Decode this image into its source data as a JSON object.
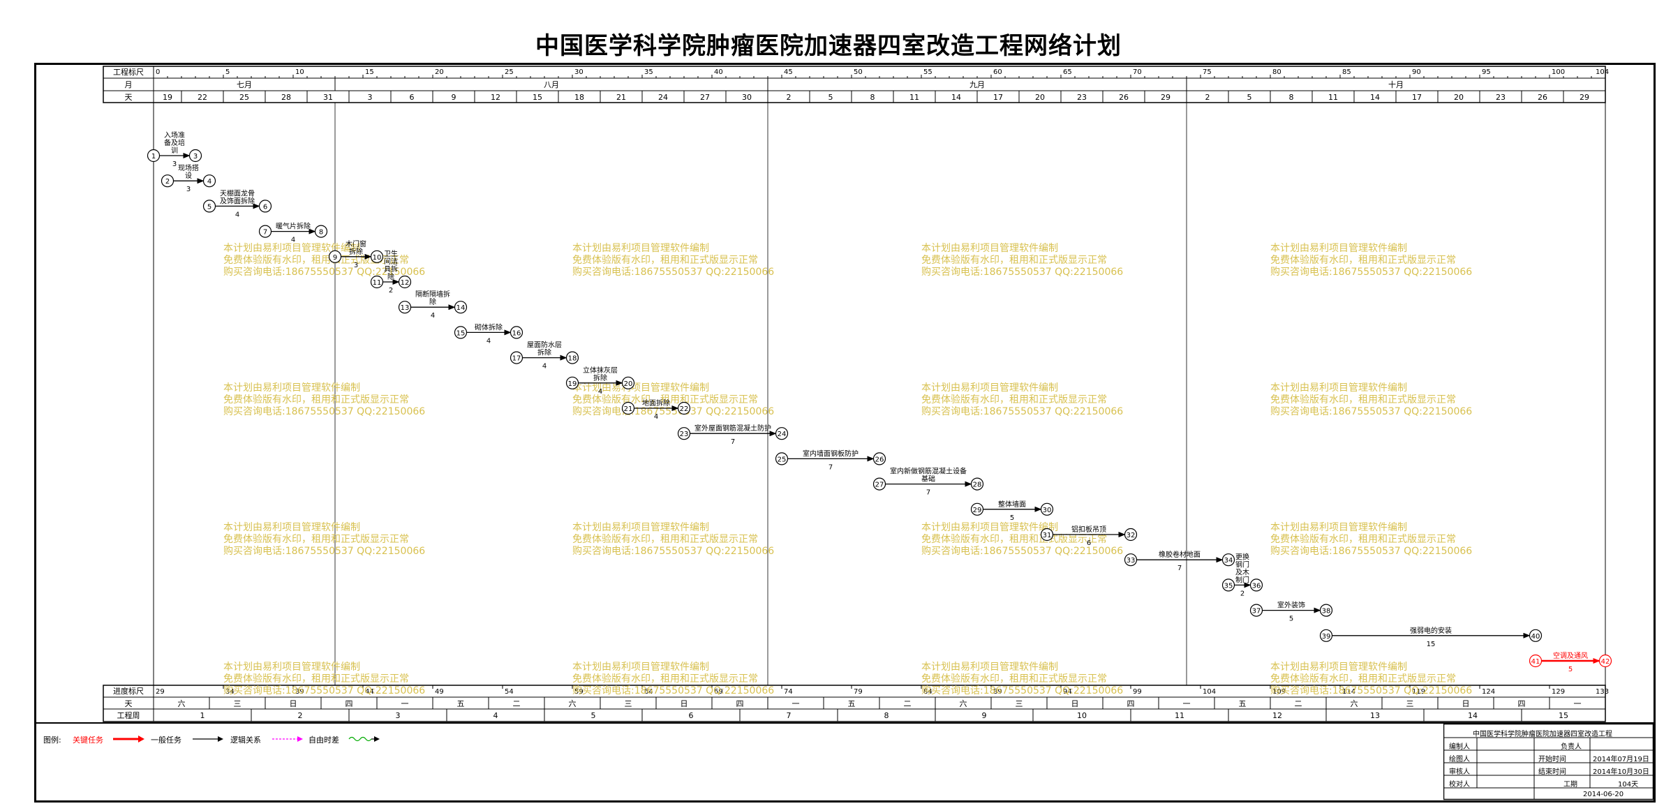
{
  "title": "中国医学科学院肿瘤医院加速器四室改造工程网络计划",
  "header": {
    "row1_label": "工程标尺",
    "row2_label": "月",
    "row3_label": "天",
    "scale_ticks": [
      "0",
      "5",
      "10",
      "15",
      "20",
      "25",
      "30",
      "35",
      "40",
      "45",
      "50",
      "55",
      "60",
      "65",
      "70",
      "75",
      "80",
      "85",
      "90",
      "95",
      "100",
      "104"
    ],
    "months": [
      {
        "label": "七月",
        "start": 0,
        "end": 13
      },
      {
        "label": "八月",
        "start": 13,
        "end": 44
      },
      {
        "label": "九月",
        "start": 44,
        "end": 74
      },
      {
        "label": "十月",
        "start": 74,
        "end": 104
      }
    ],
    "days": [
      "19",
      "22",
      "25",
      "28",
      "31",
      "3",
      "6",
      "9",
      "12",
      "15",
      "18",
      "21",
      "24",
      "27",
      "30",
      "2",
      "5",
      "8",
      "11",
      "14",
      "17",
      "20",
      "23",
      "26",
      "29",
      "2",
      "5",
      "8",
      "11",
      "14",
      "17",
      "20",
      "23",
      "26",
      "29"
    ]
  },
  "footer": {
    "row1_label": "进度标尺",
    "row2_label": "天",
    "row3_label": "工程周",
    "scale_ticks": [
      "29",
      "34",
      "39",
      "44",
      "49",
      "54",
      "59",
      "64",
      "69",
      "74",
      "79",
      "84",
      "89",
      "94",
      "99",
      "104",
      "109",
      "114",
      "119",
      "124",
      "129",
      "133"
    ],
    "weekdays": [
      "六",
      "三",
      "日",
      "四",
      "一",
      "五",
      "二",
      "六",
      "三",
      "日",
      "四",
      "一",
      "五",
      "二",
      "六",
      "三",
      "日",
      "四",
      "一",
      "五",
      "二",
      "六",
      "三",
      "日",
      "四",
      "一"
    ],
    "weeks": [
      "1",
      "2",
      "3",
      "4",
      "5",
      "6",
      "7",
      "8",
      "9",
      "10",
      "11",
      "12",
      "13",
      "14",
      "15"
    ]
  },
  "tasks": [
    {
      "from": 1,
      "to": 3,
      "start": 0,
      "end": 3,
      "label": "入场准备及培训",
      "dur": "3",
      "type": "normal"
    },
    {
      "from": 2,
      "to": 4,
      "start": 1,
      "end": 4,
      "label": "现场搭设",
      "dur": "3",
      "type": "normal"
    },
    {
      "from": 5,
      "to": 6,
      "start": 4,
      "end": 8,
      "label": "天棚面龙骨及饰面拆除",
      "dur": "4",
      "type": "normal"
    },
    {
      "from": 7,
      "to": 8,
      "start": 8,
      "end": 12,
      "label": "暖气片拆除",
      "dur": "4",
      "type": "normal"
    },
    {
      "from": 9,
      "to": 10,
      "start": 13,
      "end": 16,
      "label": "木门窗拆除",
      "dur": "3",
      "type": "normal"
    },
    {
      "from": 11,
      "to": 12,
      "start": 16,
      "end": 18,
      "label": "卫生间洁具拆除",
      "dur": "2",
      "type": "normal"
    },
    {
      "from": 13,
      "to": 14,
      "start": 18,
      "end": 22,
      "label": "隔断隔墙拆除",
      "dur": "4",
      "type": "normal"
    },
    {
      "from": 15,
      "to": 16,
      "start": 22,
      "end": 26,
      "label": "砌体拆除",
      "dur": "4",
      "type": "normal"
    },
    {
      "from": 17,
      "to": 18,
      "start": 26,
      "end": 30,
      "label": "屋面防水层拆除",
      "dur": "4",
      "type": "normal"
    },
    {
      "from": 19,
      "to": 20,
      "start": 30,
      "end": 34,
      "label": "立体抹灰层拆除",
      "dur": "4",
      "type": "normal"
    },
    {
      "from": 21,
      "to": 22,
      "start": 34,
      "end": 38,
      "label": "地面拆除",
      "dur": "4",
      "type": "normal"
    },
    {
      "from": 23,
      "to": 24,
      "start": 38,
      "end": 45,
      "label": "室外屋面钢筋混凝土防护",
      "dur": "7",
      "type": "normal"
    },
    {
      "from": 25,
      "to": 26,
      "start": 45,
      "end": 52,
      "label": "室内墙面钢板防护",
      "dur": "7",
      "type": "normal"
    },
    {
      "from": 27,
      "to": 28,
      "start": 52,
      "end": 59,
      "label": "室内新做钢筋混凝土设备基础",
      "dur": "7",
      "type": "normal"
    },
    {
      "from": 29,
      "to": 30,
      "start": 59,
      "end": 64,
      "label": "整体墙面",
      "dur": "5",
      "type": "normal"
    },
    {
      "from": 31,
      "to": 32,
      "start": 64,
      "end": 70,
      "label": "铝扣板吊顶",
      "dur": "6",
      "type": "normal"
    },
    {
      "from": 33,
      "to": 34,
      "start": 70,
      "end": 77,
      "label": "橡胶卷材地面",
      "dur": "7",
      "type": "normal"
    },
    {
      "from": 35,
      "to": 36,
      "start": 77,
      "end": 79,
      "label": "更换钢门及木制门",
      "dur": "2",
      "type": "normal"
    },
    {
      "from": 37,
      "to": 38,
      "start": 79,
      "end": 84,
      "label": "室外装饰",
      "dur": "5",
      "type": "normal"
    },
    {
      "from": 39,
      "to": 40,
      "start": 84,
      "end": 99,
      "label": "强弱电的安装",
      "dur": "15",
      "type": "normal"
    },
    {
      "from": 41,
      "to": 42,
      "start": 99,
      "end": 104,
      "label": "空调及通风",
      "dur": "5",
      "type": "critical"
    }
  ],
  "watermark": {
    "line1": "本计划由易利项目管理软件编制",
    "line2": "免费体验版有水印，租用和正式版显示正常",
    "line3": "购买咨询电话:18675550537 QQ:22150066"
  },
  "legend": {
    "label": "图例:",
    "critical": "关键任务",
    "normal": "一般任务",
    "logic": "逻辑关系",
    "float": "自由时差",
    "colors": {
      "critical": "#ff0000",
      "normal": "#000000",
      "logic": "#ff00ff",
      "float": "#00aa00"
    }
  },
  "title_block": {
    "project": "中国医学科学院肿瘤医院加速器四室改造工程",
    "compiler": "编制人",
    "responsible": "负责人",
    "drawer": "绘图人",
    "start_label": "开始时间",
    "start_value": "2014年07月19日",
    "reviewer": "审核人",
    "end_label": "结束时间",
    "end_value": "2014年10月30日",
    "checker": "校对人",
    "duration_label": "工期",
    "duration_value": "104天",
    "date": "2014-06-20"
  }
}
